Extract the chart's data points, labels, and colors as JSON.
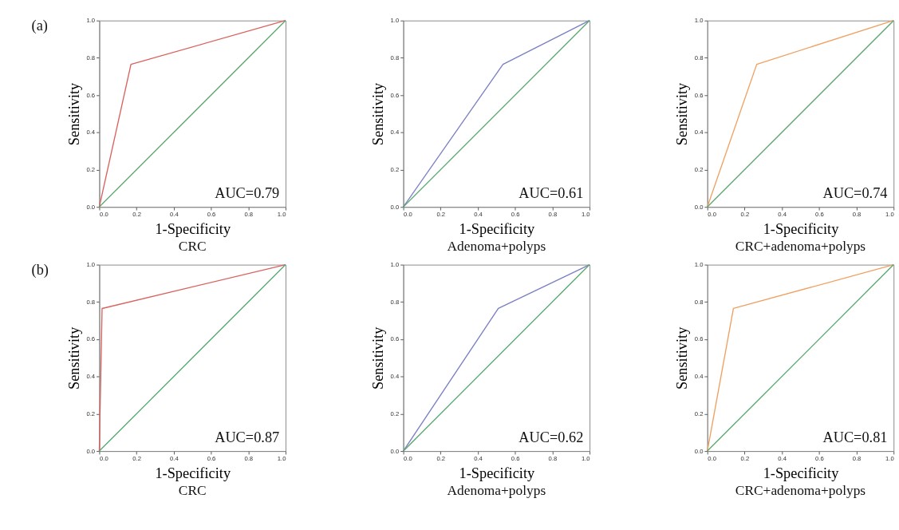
{
  "chart_data": [
    {
      "type": "line",
      "title": "CRC",
      "xlabel": "1-Specificity",
      "ylabel": "Sensitivity",
      "xlim": [
        0,
        1
      ],
      "ylim": [
        0,
        1
      ],
      "xticks": [
        {
          "value": 0,
          "label": "0.0"
        },
        {
          "value": 0.2,
          "label": "0.2"
        },
        {
          "value": 0.4,
          "label": "0.4"
        },
        {
          "value": 0.6,
          "label": "0.6"
        },
        {
          "value": 0.8,
          "label": "0.8"
        },
        {
          "value": 1,
          "label": "1.0"
        }
      ],
      "yticks": [
        {
          "value": 0,
          "label": "0.0"
        },
        {
          "value": 0.2,
          "label": "0.2"
        },
        {
          "value": 0.4,
          "label": "0.4"
        },
        {
          "value": 0.6,
          "label": "0.6"
        },
        {
          "value": 0.8,
          "label": "0.8"
        },
        {
          "value": 1,
          "label": "1.0"
        }
      ],
      "series": [
        {
          "color": "#d9625e",
          "x": [
            0,
            0.17,
            1
          ],
          "values": [
            0,
            0.765,
            1
          ]
        },
        {
          "color": "#5aa870",
          "x": [
            0,
            1
          ],
          "values": [
            0,
            1
          ]
        }
      ],
      "annotations": [
        "(a)",
        "AUC=0.79"
      ],
      "grid": false,
      "legend": false,
      "marker": "none",
      "line_style": "solid"
    },
    {
      "type": "line",
      "title": "Adenoma+polyps",
      "xlabel": "1-Specificity",
      "ylabel": "Sensitivity",
      "xlim": [
        0,
        1
      ],
      "ylim": [
        0,
        1
      ],
      "xticks": [
        {
          "value": 0,
          "label": "0.0"
        },
        {
          "value": 0.2,
          "label": "0.2"
        },
        {
          "value": 0.4,
          "label": "0.4"
        },
        {
          "value": 0.6,
          "label": "0.6"
        },
        {
          "value": 0.8,
          "label": "0.8"
        },
        {
          "value": 1,
          "label": "1.0"
        }
      ],
      "yticks": [
        {
          "value": 0,
          "label": "0.0"
        },
        {
          "value": 0.2,
          "label": "0.2"
        },
        {
          "value": 0.4,
          "label": "0.4"
        },
        {
          "value": 0.6,
          "label": "0.6"
        },
        {
          "value": 0.8,
          "label": "0.8"
        },
        {
          "value": 1,
          "label": "1.0"
        }
      ],
      "series": [
        {
          "color": "#7b7fc4",
          "x": [
            0,
            0.535,
            1
          ],
          "values": [
            0,
            0.765,
            1
          ]
        },
        {
          "color": "#5aa870",
          "x": [
            0,
            1
          ],
          "values": [
            0,
            1
          ]
        }
      ],
      "annotations": [
        "AUC=0.61"
      ],
      "grid": false,
      "legend": false,
      "marker": "none",
      "line_style": "solid"
    },
    {
      "type": "line",
      "title": "CRC+adenoma+polyps",
      "xlabel": "1-Specificity",
      "ylabel": "Sensitivity",
      "xlim": [
        0,
        1
      ],
      "ylim": [
        0,
        1
      ],
      "xticks": [
        {
          "value": 0,
          "label": "0.0"
        },
        {
          "value": 0.2,
          "label": "0.2"
        },
        {
          "value": 0.4,
          "label": "0.4"
        },
        {
          "value": 0.6,
          "label": "0.6"
        },
        {
          "value": 0.8,
          "label": "0.8"
        },
        {
          "value": 1,
          "label": "1.0"
        }
      ],
      "yticks": [
        {
          "value": 0,
          "label": "0.0"
        },
        {
          "value": 0.2,
          "label": "0.2"
        },
        {
          "value": 0.4,
          "label": "0.4"
        },
        {
          "value": 0.6,
          "label": "0.6"
        },
        {
          "value": 0.8,
          "label": "0.8"
        },
        {
          "value": 1,
          "label": "1.0"
        }
      ],
      "series": [
        {
          "color": "#f0a060",
          "x": [
            0,
            0.265,
            1
          ],
          "values": [
            0,
            0.765,
            1
          ]
        },
        {
          "color": "#5aa870",
          "x": [
            0,
            1
          ],
          "values": [
            0,
            1
          ]
        }
      ],
      "annotations": [
        "AUC=0.74"
      ],
      "grid": false,
      "legend": false,
      "marker": "none",
      "line_style": "solid"
    },
    {
      "type": "line",
      "title": "CRC",
      "xlabel": "1-Specificity",
      "ylabel": "Sensitivity",
      "xlim": [
        0,
        1
      ],
      "ylim": [
        0,
        1
      ],
      "xticks": [
        {
          "value": 0,
          "label": "0.0"
        },
        {
          "value": 0.2,
          "label": "0.2"
        },
        {
          "value": 0.4,
          "label": "0.4"
        },
        {
          "value": 0.6,
          "label": "0.6"
        },
        {
          "value": 0.8,
          "label": "0.8"
        },
        {
          "value": 1,
          "label": "1.0"
        }
      ],
      "yticks": [
        {
          "value": 0,
          "label": "0.0"
        },
        {
          "value": 0.2,
          "label": "0.2"
        },
        {
          "value": 0.4,
          "label": "0.4"
        },
        {
          "value": 0.6,
          "label": "0.6"
        },
        {
          "value": 0.8,
          "label": "0.8"
        },
        {
          "value": 1,
          "label": "1.0"
        }
      ],
      "series": [
        {
          "color": "#d9625e",
          "x": [
            0,
            0.015,
            1
          ],
          "values": [
            0,
            0.765,
            1
          ]
        },
        {
          "color": "#5aa870",
          "x": [
            0,
            1
          ],
          "values": [
            0,
            1
          ]
        }
      ],
      "annotations": [
        "(b)",
        "AUC=0.87"
      ],
      "grid": false,
      "legend": false,
      "marker": "none",
      "line_style": "solid"
    },
    {
      "type": "line",
      "title": "Adenoma+polyps",
      "xlabel": "1-Specificity",
      "ylabel": "Sensitivity",
      "xlim": [
        0,
        1
      ],
      "ylim": [
        0,
        1
      ],
      "xticks": [
        {
          "value": 0,
          "label": "0.0"
        },
        {
          "value": 0.2,
          "label": "0.2"
        },
        {
          "value": 0.4,
          "label": "0.4"
        },
        {
          "value": 0.6,
          "label": "0.6"
        },
        {
          "value": 0.8,
          "label": "0.8"
        },
        {
          "value": 1,
          "label": "1.0"
        }
      ],
      "yticks": [
        {
          "value": 0,
          "label": "0.0"
        },
        {
          "value": 0.2,
          "label": "0.2"
        },
        {
          "value": 0.4,
          "label": "0.4"
        },
        {
          "value": 0.6,
          "label": "0.6"
        },
        {
          "value": 0.8,
          "label": "0.8"
        },
        {
          "value": 1,
          "label": "1.0"
        }
      ],
      "series": [
        {
          "color": "#7b7fc4",
          "x": [
            0,
            0.51,
            1
          ],
          "values": [
            0,
            0.765,
            1
          ]
        },
        {
          "color": "#5aa870",
          "x": [
            0,
            1
          ],
          "values": [
            0,
            1
          ]
        }
      ],
      "annotations": [
        "AUC=0.62"
      ],
      "grid": false,
      "legend": false,
      "marker": "none",
      "line_style": "solid"
    },
    {
      "type": "line",
      "title": "CRC+adenoma+polyps",
      "xlabel": "1-Specificity",
      "ylabel": "Sensitivity",
      "xlim": [
        0,
        1
      ],
      "ylim": [
        0,
        1
      ],
      "xticks": [
        {
          "value": 0,
          "label": "0.0"
        },
        {
          "value": 0.2,
          "label": "0.2"
        },
        {
          "value": 0.4,
          "label": "0.4"
        },
        {
          "value": 0.6,
          "label": "0.6"
        },
        {
          "value": 0.8,
          "label": "0.8"
        },
        {
          "value": 1,
          "label": "1.0"
        }
      ],
      "yticks": [
        {
          "value": 0,
          "label": "0.0"
        },
        {
          "value": 0.2,
          "label": "0.2"
        },
        {
          "value": 0.4,
          "label": "0.4"
        },
        {
          "value": 0.6,
          "label": "0.6"
        },
        {
          "value": 0.8,
          "label": "0.8"
        },
        {
          "value": 1,
          "label": "1.0"
        }
      ],
      "series": [
        {
          "color": "#f0a060",
          "x": [
            0,
            0.14,
            1
          ],
          "values": [
            0,
            0.765,
            1
          ]
        },
        {
          "color": "#5aa870",
          "x": [
            0,
            1
          ],
          "values": [
            0,
            1
          ]
        }
      ],
      "annotations": [
        "AUC=0.81"
      ],
      "grid": false,
      "legend": false,
      "marker": "none",
      "line_style": "solid"
    }
  ]
}
